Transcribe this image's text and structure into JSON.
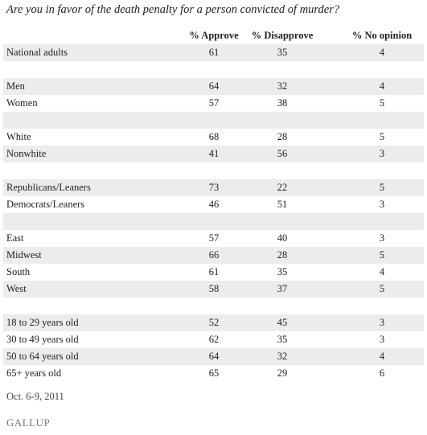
{
  "title": "Are you in favor of the death penalty for a person convicted of murder?",
  "table": {
    "columns": [
      "% Approve",
      "% Disapprove",
      "% No opinion"
    ],
    "groups": [
      [
        [
          "National adults",
          61,
          35,
          4
        ]
      ],
      [
        [
          "Men",
          64,
          32,
          4
        ],
        [
          "Women",
          57,
          38,
          5
        ]
      ],
      [
        [
          "White",
          68,
          28,
          5
        ],
        [
          "Nonwhite",
          41,
          56,
          3
        ]
      ],
      [
        [
          "Republicans/Leaners",
          73,
          22,
          5
        ],
        [
          "Democrats/Leaners",
          46,
          51,
          3
        ]
      ],
      [
        [
          "East",
          57,
          40,
          3
        ],
        [
          "Midwest",
          66,
          28,
          5
        ],
        [
          "South",
          61,
          35,
          4
        ],
        [
          "West",
          58,
          37,
          5
        ]
      ],
      [
        [
          "18 to 29 years old",
          52,
          45,
          3
        ],
        [
          "30 to 49 years old",
          62,
          35,
          3
        ],
        [
          "50 to 64 years old",
          64,
          32,
          4
        ],
        [
          "65+ years old",
          65,
          29,
          6
        ]
      ]
    ]
  },
  "footer": {
    "date": "Oct. 6-9, 2011",
    "source": "GALLUP"
  }
}
